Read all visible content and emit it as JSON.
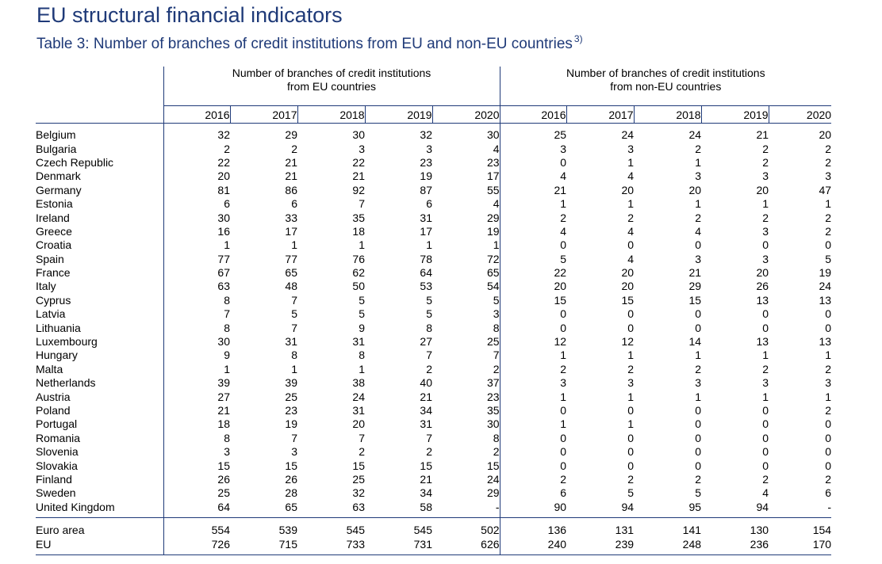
{
  "title": "EU structural financial indicators",
  "subtitle": "Table 3: Number of branches of credit institutions from EU and non-EU countries",
  "subtitle_note": "3)",
  "groups": [
    {
      "line1": "Number of branches of credit institutions",
      "line2": "from EU countries"
    },
    {
      "line1": "Number of branches of credit institutions",
      "line2": "from non-EU countries"
    }
  ],
  "years": [
    "2016",
    "2017",
    "2018",
    "2019",
    "2020",
    "2016",
    "2017",
    "2018",
    "2019",
    "2020"
  ],
  "rows": [
    {
      "country": "Belgium",
      "values": [
        "32",
        "29",
        "30",
        "32",
        "30",
        "25",
        "24",
        "24",
        "21",
        "20"
      ]
    },
    {
      "country": "Bulgaria",
      "values": [
        "2",
        "2",
        "3",
        "3",
        "4",
        "3",
        "3",
        "2",
        "2",
        "2"
      ]
    },
    {
      "country": "Czech Republic",
      "values": [
        "22",
        "21",
        "22",
        "23",
        "23",
        "0",
        "1",
        "1",
        "2",
        "2"
      ]
    },
    {
      "country": "Denmark",
      "values": [
        "20",
        "21",
        "21",
        "19",
        "17",
        "4",
        "4",
        "3",
        "3",
        "3"
      ]
    },
    {
      "country": "Germany",
      "values": [
        "81",
        "86",
        "92",
        "87",
        "55",
        "21",
        "20",
        "20",
        "20",
        "47"
      ]
    },
    {
      "country": "Estonia",
      "values": [
        "6",
        "6",
        "7",
        "6",
        "4",
        "1",
        "1",
        "1",
        "1",
        "1"
      ]
    },
    {
      "country": "Ireland",
      "values": [
        "30",
        "33",
        "35",
        "31",
        "29",
        "2",
        "2",
        "2",
        "2",
        "2"
      ]
    },
    {
      "country": "Greece",
      "values": [
        "16",
        "17",
        "18",
        "17",
        "19",
        "4",
        "4",
        "4",
        "3",
        "2"
      ]
    },
    {
      "country": "Croatia",
      "values": [
        "1",
        "1",
        "1",
        "1",
        "1",
        "0",
        "0",
        "0",
        "0",
        "0"
      ]
    },
    {
      "country": "Spain",
      "values": [
        "77",
        "77",
        "76",
        "78",
        "72",
        "5",
        "4",
        "3",
        "3",
        "5"
      ]
    },
    {
      "country": "France",
      "values": [
        "67",
        "65",
        "62",
        "64",
        "65",
        "22",
        "20",
        "21",
        "20",
        "19"
      ]
    },
    {
      "country": "Italy",
      "values": [
        "63",
        "48",
        "50",
        "53",
        "54",
        "20",
        "20",
        "29",
        "26",
        "24"
      ]
    },
    {
      "country": "Cyprus",
      "values": [
        "8",
        "7",
        "5",
        "5",
        "5",
        "15",
        "15",
        "15",
        "13",
        "13"
      ]
    },
    {
      "country": "Latvia",
      "values": [
        "7",
        "5",
        "5",
        "5",
        "3",
        "0",
        "0",
        "0",
        "0",
        "0"
      ]
    },
    {
      "country": "Lithuania",
      "values": [
        "8",
        "7",
        "9",
        "8",
        "8",
        "0",
        "0",
        "0",
        "0",
        "0"
      ]
    },
    {
      "country": "Luxembourg",
      "values": [
        "30",
        "31",
        "31",
        "27",
        "25",
        "12",
        "12",
        "14",
        "13",
        "13"
      ]
    },
    {
      "country": "Hungary",
      "values": [
        "9",
        "8",
        "8",
        "7",
        "7",
        "1",
        "1",
        "1",
        "1",
        "1"
      ]
    },
    {
      "country": "Malta",
      "values": [
        "1",
        "1",
        "1",
        "2",
        "2",
        "2",
        "2",
        "2",
        "2",
        "2"
      ]
    },
    {
      "country": "Netherlands",
      "values": [
        "39",
        "39",
        "38",
        "40",
        "37",
        "3",
        "3",
        "3",
        "3",
        "3"
      ]
    },
    {
      "country": "Austria",
      "values": [
        "27",
        "25",
        "24",
        "21",
        "23",
        "1",
        "1",
        "1",
        "1",
        "1"
      ]
    },
    {
      "country": "Poland",
      "values": [
        "21",
        "23",
        "31",
        "34",
        "35",
        "0",
        "0",
        "0",
        "0",
        "2"
      ]
    },
    {
      "country": "Portugal",
      "values": [
        "18",
        "19",
        "20",
        "31",
        "30",
        "1",
        "1",
        "0",
        "0",
        "0"
      ]
    },
    {
      "country": "Romania",
      "values": [
        "8",
        "7",
        "7",
        "7",
        "8",
        "0",
        "0",
        "0",
        "0",
        "0"
      ]
    },
    {
      "country": "Slovenia",
      "values": [
        "3",
        "3",
        "2",
        "2",
        "2",
        "0",
        "0",
        "0",
        "0",
        "0"
      ]
    },
    {
      "country": "Slovakia",
      "values": [
        "15",
        "15",
        "15",
        "15",
        "15",
        "0",
        "0",
        "0",
        "0",
        "0"
      ]
    },
    {
      "country": "Finland",
      "values": [
        "26",
        "26",
        "25",
        "21",
        "24",
        "2",
        "2",
        "2",
        "2",
        "2"
      ]
    },
    {
      "country": "Sweden",
      "values": [
        "25",
        "28",
        "32",
        "34",
        "29",
        "6",
        "5",
        "5",
        "4",
        "6"
      ]
    },
    {
      "country": "United Kingdom",
      "values": [
        "64",
        "65",
        "63",
        "58",
        "-",
        "90",
        "94",
        "95",
        "94",
        "-"
      ]
    }
  ],
  "totals": [
    {
      "country": "Euro area",
      "values": [
        "554",
        "539",
        "545",
        "545",
        "502",
        "136",
        "131",
        "141",
        "130",
        "154"
      ]
    },
    {
      "country": "EU",
      "values": [
        "726",
        "715",
        "733",
        "731",
        "626",
        "240",
        "239",
        "248",
        "236",
        "170"
      ]
    }
  ],
  "colors": {
    "title": "#1f3a78",
    "rules": "#1f3a78"
  }
}
